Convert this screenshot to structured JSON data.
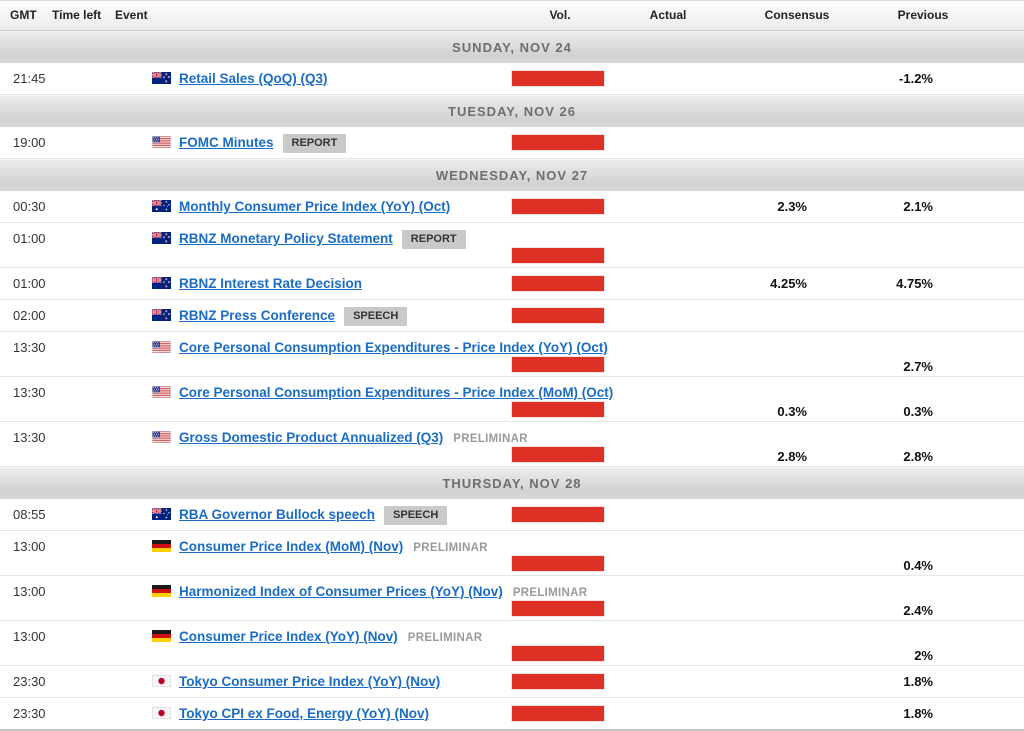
{
  "header": {
    "gmt": "GMT",
    "time_left": "Time left",
    "event": "Event",
    "vol": "Vol.",
    "actual": "Actual",
    "consensus": "Consensus",
    "previous": "Previous"
  },
  "colors": {
    "volatility_high": "#dd3125",
    "link_blue": "#1a6cc4",
    "separator_text": "#6e6e6e",
    "badge_bg": "#c9c9c9"
  },
  "rows": [
    {
      "type": "separator",
      "label": "SUNDAY, NOV 24"
    },
    {
      "type": "event",
      "layout": "single",
      "time": "21:45",
      "flag": "new-zealand",
      "event": "Retail Sales (QoQ) (Q3)",
      "badge": "",
      "note": "",
      "vol": "high",
      "actual": "",
      "consensus": "",
      "previous": "-1.2%"
    },
    {
      "type": "separator",
      "label": "TUESDAY, NOV 26"
    },
    {
      "type": "event",
      "layout": "single",
      "time": "19:00",
      "flag": "united-states",
      "event": "FOMC Minutes",
      "badge": "REPORT",
      "note": "",
      "vol": "high",
      "actual": "",
      "consensus": "",
      "previous": ""
    },
    {
      "type": "separator",
      "label": "WEDNESDAY, NOV 27"
    },
    {
      "type": "event",
      "layout": "single",
      "time": "00:30",
      "flag": "australia",
      "event": "Monthly Consumer Price Index (YoY) (Oct)",
      "badge": "",
      "note": "",
      "vol": "high",
      "actual": "",
      "consensus": "2.3%",
      "previous": "2.1%"
    },
    {
      "type": "event",
      "layout": "tall",
      "time": "01:00",
      "flag": "new-zealand",
      "event": "RBNZ Monetary Policy Statement",
      "badge": "REPORT",
      "note": "",
      "vol": "high",
      "actual": "",
      "consensus": "",
      "previous": ""
    },
    {
      "type": "event",
      "layout": "single",
      "time": "01:00",
      "flag": "new-zealand",
      "event": "RBNZ Interest Rate Decision",
      "badge": "",
      "note": "",
      "vol": "high",
      "actual": "",
      "consensus": "4.25%",
      "previous": "4.75%"
    },
    {
      "type": "event",
      "layout": "single",
      "time": "02:00",
      "flag": "new-zealand",
      "event": "RBNZ Press Conference",
      "badge": "SPEECH",
      "note": "",
      "vol": "high",
      "actual": "",
      "consensus": "",
      "previous": ""
    },
    {
      "type": "event",
      "layout": "tall",
      "time": "13:30",
      "flag": "united-states",
      "event": "Core Personal Consumption Expenditures - Price Index (YoY) (Oct)",
      "badge": "",
      "note": "",
      "vol": "high",
      "actual": "",
      "consensus": "",
      "previous": "2.7%"
    },
    {
      "type": "event",
      "layout": "tall",
      "time": "13:30",
      "flag": "united-states",
      "event": "Core Personal Consumption Expenditures - Price Index (MoM) (Oct)",
      "badge": "",
      "note": "",
      "vol": "high",
      "actual": "",
      "consensus": "0.3%",
      "previous": "0.3%"
    },
    {
      "type": "event",
      "layout": "tall",
      "time": "13:30",
      "flag": "united-states",
      "event": "Gross Domestic Product Annualized (Q3)",
      "badge": "",
      "note": "PRELIMINAR",
      "vol": "high",
      "actual": "",
      "consensus": "2.8%",
      "previous": "2.8%"
    },
    {
      "type": "separator",
      "label": "THURSDAY, NOV 28"
    },
    {
      "type": "event",
      "layout": "single",
      "time": "08:55",
      "flag": "australia",
      "event": "RBA Governor Bullock speech",
      "badge": "SPEECH",
      "note": "",
      "vol": "high",
      "actual": "",
      "consensus": "",
      "previous": ""
    },
    {
      "type": "event",
      "layout": "tall",
      "time": "13:00",
      "flag": "germany",
      "event": "Consumer Price Index (MoM) (Nov)",
      "badge": "",
      "note": "PRELIMINAR",
      "vol": "high",
      "actual": "",
      "consensus": "",
      "previous": "0.4%"
    },
    {
      "type": "event",
      "layout": "tall",
      "time": "13:00",
      "flag": "germany",
      "event": "Harmonized Index of Consumer Prices (YoY) (Nov)",
      "badge": "",
      "note": "PRELIMINAR",
      "vol": "high",
      "actual": "",
      "consensus": "",
      "previous": "2.4%"
    },
    {
      "type": "event",
      "layout": "tall",
      "time": "13:00",
      "flag": "germany",
      "event": "Consumer Price Index (YoY) (Nov)",
      "badge": "",
      "note": "PRELIMINAR",
      "vol": "high",
      "actual": "",
      "consensus": "",
      "previous": "2%"
    },
    {
      "type": "event",
      "layout": "single",
      "time": "23:30",
      "flag": "japan",
      "event": "Tokyo Consumer Price Index (YoY) (Nov)",
      "badge": "",
      "note": "",
      "vol": "high",
      "actual": "",
      "consensus": "",
      "previous": "1.8%"
    },
    {
      "type": "event",
      "layout": "single",
      "time": "23:30",
      "flag": "japan",
      "event": "Tokyo CPI ex Food, Energy (YoY) (Nov)",
      "badge": "",
      "note": "",
      "vol": "high",
      "actual": "",
      "consensus": "",
      "previous": "1.8%"
    }
  ]
}
